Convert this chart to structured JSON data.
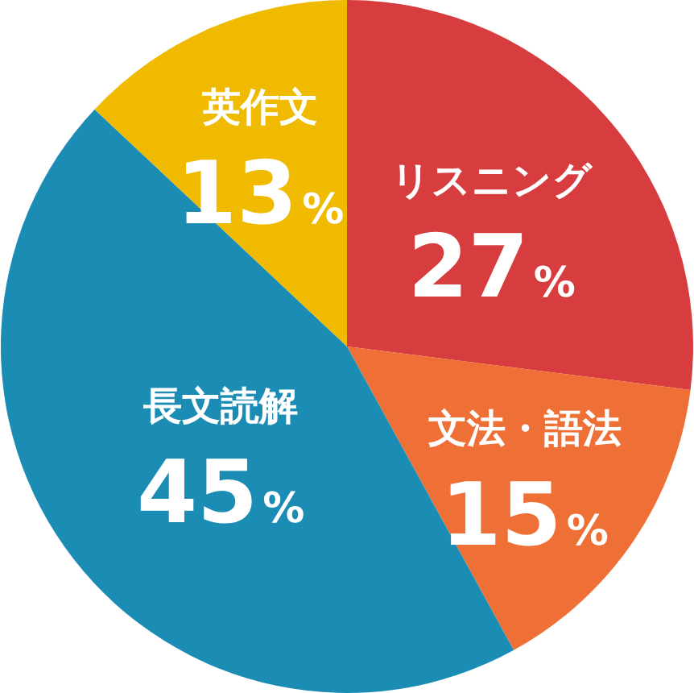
{
  "chart_data": {
    "type": "pie",
    "categories": [
      "リスニング",
      "文法・語法",
      "長文読解",
      "英作文"
    ],
    "values": [
      27,
      15,
      45,
      13
    ],
    "colors": [
      "#d73d3f",
      "#ee7036",
      "#1b8db5",
      "#efba00"
    ],
    "value_labels": [
      "27%",
      "15%",
      "45%",
      "13%"
    ]
  }
}
